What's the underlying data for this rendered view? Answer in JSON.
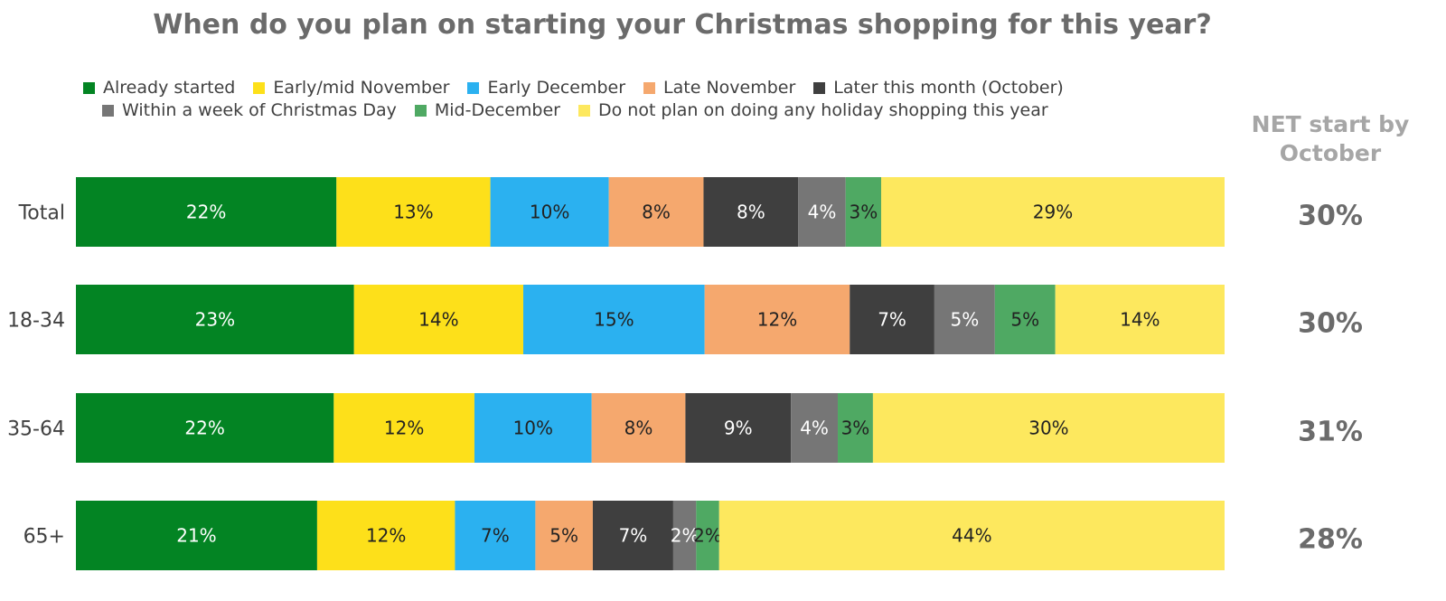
{
  "chart_data": {
    "type": "bar",
    "orientation": "horizontal",
    "stacked": true,
    "title": "When do you plan on starting your Christmas shopping for this year?",
    "categories": [
      "Total",
      "18-34",
      "35-64",
      "65+"
    ],
    "series": [
      {
        "name": "Already started",
        "color": "#038423",
        "values": [
          22,
          23,
          22,
          21
        ]
      },
      {
        "name": "Early/mid November",
        "color": "#fde01a",
        "values": [
          13,
          14,
          12,
          12
        ]
      },
      {
        "name": "Early December",
        "color": "#2bb1f0",
        "values": [
          10,
          15,
          10,
          7
        ]
      },
      {
        "name": "Late November",
        "color": "#f5a86e",
        "values": [
          8,
          12,
          8,
          5
        ]
      },
      {
        "name": "Later this month (October)",
        "color": "#3f3f3f",
        "values": [
          8,
          7,
          9,
          7
        ]
      },
      {
        "name": "Within a week of Christmas Day",
        "color": "#767676",
        "values": [
          4,
          5,
          4,
          2
        ]
      },
      {
        "name": "Mid-December",
        "color": "#4fa963",
        "values": [
          3,
          5,
          3,
          2
        ]
      },
      {
        "name": "Do not plan on doing any holiday shopping this year",
        "color": "#fde85e",
        "values": [
          29,
          14,
          30,
          44
        ]
      }
    ],
    "value_suffix": "%",
    "legend_position": "top",
    "grid": false,
    "net": {
      "header": [
        "NET start by",
        "October"
      ],
      "values": [
        "30%",
        "30%",
        "31%",
        "28%"
      ]
    }
  },
  "legend_rows": [
    [
      0,
      1,
      2,
      3,
      4
    ],
    [
      5,
      6,
      7
    ]
  ],
  "label_colors": [
    "#ffffff",
    "#222222",
    "#222222",
    "#222222",
    "#ffffff",
    "#ffffff",
    "#222222",
    "#222222"
  ]
}
